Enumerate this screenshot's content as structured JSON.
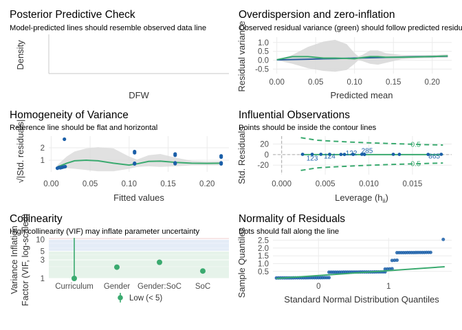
{
  "colors": {
    "green": "#3aaa6f",
    "blue": "#1b5fa8",
    "grey_band": "#d9d9d9",
    "grid": "#ebebeb"
  },
  "panels": {
    "ppc": {
      "title": "Posterior Predictive Check",
      "subtitle": "Model-predicted lines should resemble observed data line",
      "xlabel": "DFW",
      "ylabel": "Density"
    },
    "overdisp": {
      "title": "Overdispersion and zero-inflation",
      "subtitle": "Observed residual variance (green) should follow predicted residual variance (gray)",
      "xlabel": "Predicted mean",
      "ylabel": "Residual variance"
    },
    "homog": {
      "title": "Homogeneity of Variance",
      "subtitle": "Reference line should be flat and horizontal",
      "xlabel": "Fitted values",
      "ylabel": "√|Std. residuals|"
    },
    "influ": {
      "title": "Influential Observations",
      "subtitle": "Points should be inside the contour lines",
      "xlabel": "Leverage (hii)",
      "ylabel": "Std. Residuals"
    },
    "colli": {
      "title": "Collinearity",
      "subtitle": "High collinearity (VIF) may inflate parameter uncertainty",
      "ylabel_1": "Variance Inflation",
      "ylabel_2": "Factor (VIF, log-scaled)",
      "legend_label": "Low (< 5)"
    },
    "qq": {
      "title": "Normality of Residuals",
      "subtitle": "Dots should fall along the line",
      "xlabel": "Standard Normal Distribution Quantiles",
      "ylabel": "Sample Quantiles"
    }
  },
  "chart_data": [
    {
      "type": "line",
      "title": "Posterior Predictive Check",
      "subtitle": "Model-predicted lines should resemble observed data line",
      "xlabel": "DFW",
      "ylabel": "Density",
      "series": []
    },
    {
      "type": "area",
      "title": "Overdispersion and zero-inflation",
      "subtitle": "Observed residual variance (green) should follow predicted residual variance (gray)",
      "xlabel": "Predicted mean",
      "ylabel": "Residual variance",
      "xlim": [
        -0.005,
        0.225
      ],
      "ylim": [
        -0.75,
        1.3
      ],
      "xticks": [
        "0.00",
        "0.05",
        "0.10",
        "0.15",
        "0.20"
      ],
      "yticks": [
        "-0.5",
        "0.0",
        "0.5",
        "1.0"
      ],
      "x": [
        0.0,
        0.02,
        0.04,
        0.06,
        0.075,
        0.09,
        0.1,
        0.105,
        0.11,
        0.12,
        0.13,
        0.14,
        0.16,
        0.18,
        0.2,
        0.22
      ],
      "band_upper": [
        0.02,
        0.3,
        0.75,
        1.05,
        1.15,
        0.9,
        0.4,
        0.22,
        0.3,
        0.55,
        0.55,
        0.4,
        0.3,
        0.28,
        0.3,
        0.32
      ],
      "band_lower": [
        0.0,
        -0.2,
        -0.45,
        -0.6,
        -0.65,
        -0.55,
        -0.2,
        0.0,
        -0.05,
        -0.2,
        -0.25,
        -0.15,
        0.05,
        0.1,
        0.12,
        0.14
      ],
      "observed": [
        0.03,
        0.2,
        0.2,
        0.12,
        0.12,
        0.1,
        0.08,
        0.12,
        0.15,
        0.2,
        0.2,
        0.17,
        0.17,
        0.19,
        0.21,
        0.24
      ],
      "predicted": [
        0.02,
        0.04,
        0.06,
        0.08,
        0.09,
        0.11,
        0.12,
        0.12,
        0.13,
        0.14,
        0.15,
        0.16,
        0.18,
        0.2,
        0.21,
        0.23
      ]
    },
    {
      "type": "scatter",
      "title": "Homogeneity of Variance",
      "subtitle": "Reference line should be flat and horizontal",
      "xlabel": "Fitted values",
      "ylabel": "√|Std. residuals|",
      "xlim": [
        -0.003,
        0.228
      ],
      "ylim": [
        0.05,
        2.95
      ],
      "xticks": [
        "0.00",
        "0.05",
        "0.10",
        "0.15",
        "0.20"
      ],
      "yticks": [
        "1",
        "2"
      ],
      "points": [
        {
          "x": 0.008,
          "y": 0.35
        },
        {
          "x": 0.01,
          "y": 0.4
        },
        {
          "x": 0.012,
          "y": 0.38
        },
        {
          "x": 0.014,
          "y": 0.42
        },
        {
          "x": 0.016,
          "y": 0.45
        },
        {
          "x": 0.018,
          "y": 0.48
        },
        {
          "x": 0.017,
          "y": 2.7
        },
        {
          "x": 0.107,
          "y": 0.7
        },
        {
          "x": 0.107,
          "y": 0.75
        },
        {
          "x": 0.107,
          "y": 1.6
        },
        {
          "x": 0.107,
          "y": 1.7
        },
        {
          "x": 0.159,
          "y": 0.72
        },
        {
          "x": 0.159,
          "y": 0.78
        },
        {
          "x": 0.159,
          "y": 1.4
        },
        {
          "x": 0.159,
          "y": 1.5
        },
        {
          "x": 0.218,
          "y": 0.7
        },
        {
          "x": 0.218,
          "y": 0.78
        },
        {
          "x": 0.218,
          "y": 1.25
        },
        {
          "x": 0.218,
          "y": 1.35
        }
      ],
      "smooth_x": [
        0.008,
        0.02,
        0.03,
        0.045,
        0.06,
        0.08,
        0.1,
        0.11,
        0.125,
        0.14,
        0.16,
        0.18,
        0.2,
        0.218
      ],
      "smooth_y": [
        0.45,
        0.75,
        0.95,
        1.0,
        0.95,
        0.75,
        0.6,
        0.7,
        0.9,
        0.92,
        0.82,
        0.75,
        0.74,
        0.75
      ],
      "band_upper": [
        0.6,
        1.3,
        1.7,
        1.95,
        2.05,
        1.95,
        1.3,
        1.05,
        1.4,
        1.5,
        1.2,
        0.95,
        0.9,
        0.92
      ],
      "band_lower": [
        0.3,
        0.35,
        0.3,
        0.2,
        0.1,
        0.1,
        0.3,
        0.45,
        0.5,
        0.45,
        0.5,
        0.58,
        0.58,
        0.58
      ]
    },
    {
      "type": "scatter",
      "title": "Influential Observations",
      "subtitle": "Points should be inside the contour lines",
      "xlabel": "Leverage (hii)",
      "ylabel": "Std. Residuals",
      "xlim": [
        -0.001,
        0.0195
      ],
      "ylim": [
        -38,
        35
      ],
      "xticks": [
        "0.000",
        "0.005",
        "0.010",
        "0.015"
      ],
      "yticks": [
        "-20",
        "0",
        "20"
      ],
      "contour_label": "0.5",
      "points": [
        {
          "x": 0.0024,
          "y": 0.5
        },
        {
          "x": 0.0035,
          "y": 0.5
        },
        {
          "x": 0.0045,
          "y": 0.5
        },
        {
          "x": 0.0055,
          "y": 0.5
        },
        {
          "x": 0.0068,
          "y": 0.3
        },
        {
          "x": 0.0072,
          "y": 0.3
        },
        {
          "x": 0.0082,
          "y": 0.4
        },
        {
          "x": 0.0092,
          "y": 0.5
        },
        {
          "x": 0.0095,
          "y": 0.2
        },
        {
          "x": 0.0128,
          "y": 0.5
        },
        {
          "x": 0.0135,
          "y": 0.4
        },
        {
          "x": 0.0168,
          "y": 0.3
        },
        {
          "x": 0.0183,
          "y": 0.5
        }
      ],
      "labels": [
        {
          "text": "123",
          "x": 0.0035,
          "y": -6
        },
        {
          "text": "124",
          "x": 0.0055,
          "y": -2
        },
        {
          "text": "122",
          "x": 0.008,
          "y": 4
        },
        {
          "text": "285",
          "x": 0.0098,
          "y": 8
        },
        {
          "text": "865",
          "x": 0.0175,
          "y": -2
        }
      ],
      "smooth_y": 0
    },
    {
      "type": "scatter",
      "title": "Collinearity",
      "subtitle": "High collinearity (VIF) may inflate parameter uncertainty",
      "ylabel": "Variance Inflation Factor (VIF, log-scaled)",
      "categories": [
        "Curriculum",
        "Gender",
        "Gender:SoC",
        "SoC"
      ],
      "values": [
        1.0,
        1.95,
        2.6,
        1.55
      ],
      "yticks": [
        "1",
        "3",
        "5",
        "10"
      ],
      "ylim": [
        1,
        11
      ],
      "scale": "log",
      "legend": [
        {
          "label": "Low (< 5)"
        }
      ],
      "legend_position": "bottom"
    },
    {
      "type": "scatter",
      "title": "Normality of Residuals",
      "subtitle": "Dots should fall along the line",
      "xlabel": "Standard Normal Distribution Quantiles",
      "ylabel": "Sample Quantiles",
      "xlim": [
        -0.65,
        1.9
      ],
      "ylim": [
        0.05,
        2.65
      ],
      "xticks": [
        "0",
        "1"
      ],
      "yticks": [
        "0.5",
        "1.0",
        "1.5",
        "2.0",
        "2.5"
      ],
      "segments": [
        {
          "x0": -0.6,
          "x1": 0.15,
          "y": 0.08
        },
        {
          "x0": 0.15,
          "x1": 0.95,
          "y": 0.45
        },
        {
          "x0": 0.95,
          "x1": 1.05,
          "y": 0.65
        },
        {
          "x0": 1.05,
          "x1": 1.12,
          "y": 1.2
        },
        {
          "x0": 1.12,
          "x1": 1.6,
          "y": 1.7
        }
      ],
      "outlier": {
        "x": 1.78,
        "y": 2.55
      },
      "ref_line": {
        "x0": -0.6,
        "y0": 0.05,
        "x1": 1.8,
        "y1": 0.8
      }
    }
  ]
}
